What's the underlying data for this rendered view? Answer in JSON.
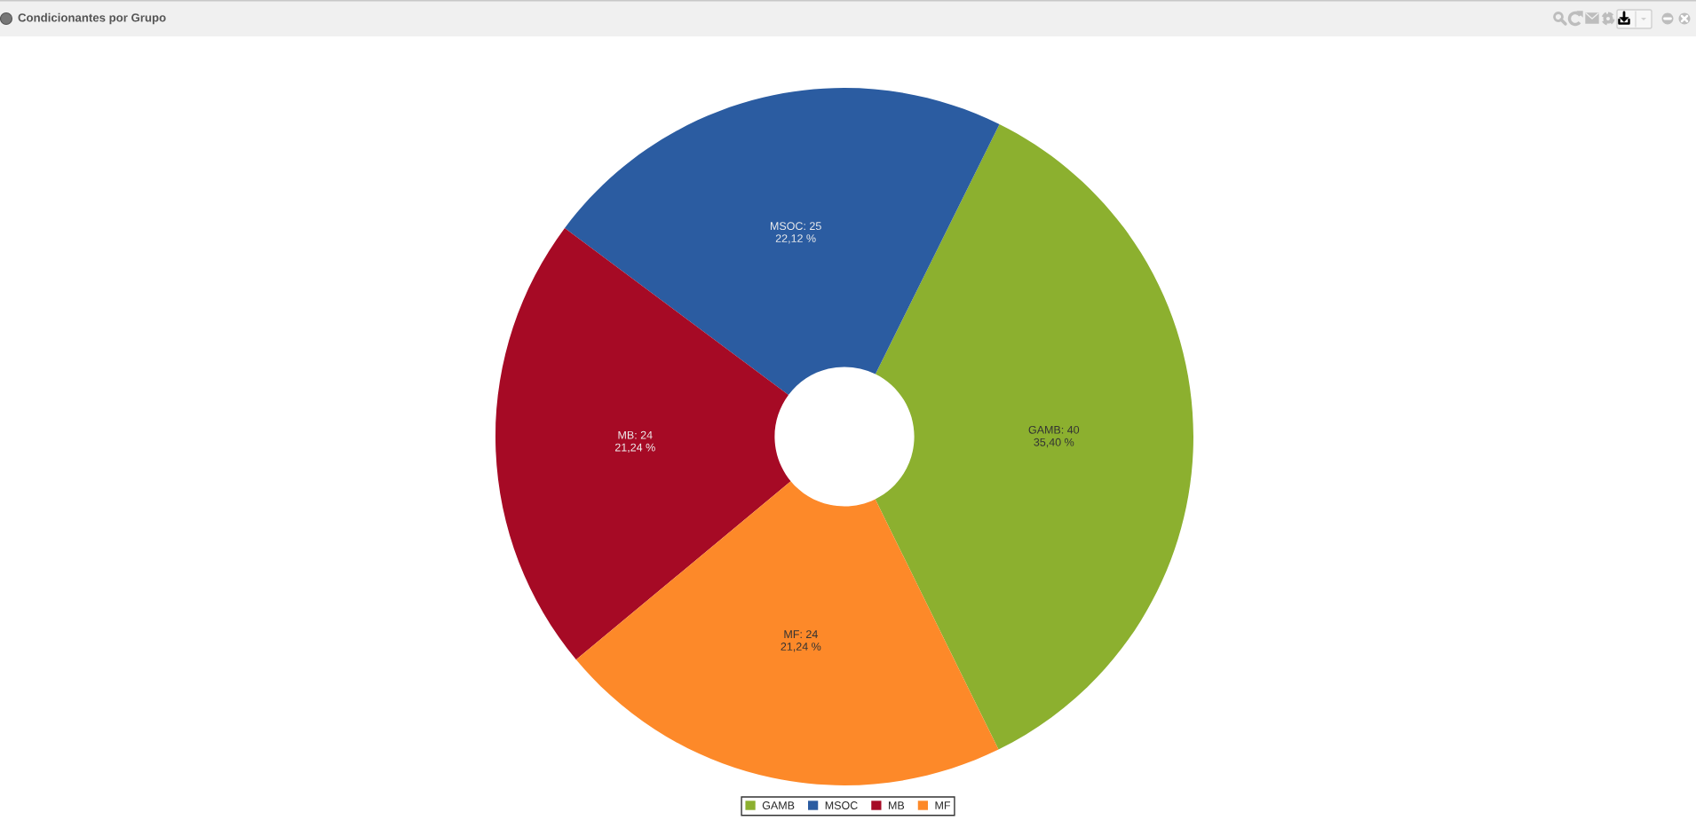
{
  "chart_data": {
    "type": "donut",
    "title": "Condicionantes por Grupo",
    "categories": [
      "GAMB",
      "MSOC",
      "MB",
      "MF"
    ],
    "values": [
      40,
      25,
      24,
      24
    ],
    "colors": [
      "#8cb02f",
      "#2b5ca1",
      "#a60a25",
      "#fd8929"
    ],
    "value_labels": [
      "GAMB: 40\n35,40 %",
      "MSOC: 25\n22,12 %",
      "MB: 24\n21,24 %",
      "MF: 24\n21,24 %"
    ],
    "legend": "bottom"
  }
}
